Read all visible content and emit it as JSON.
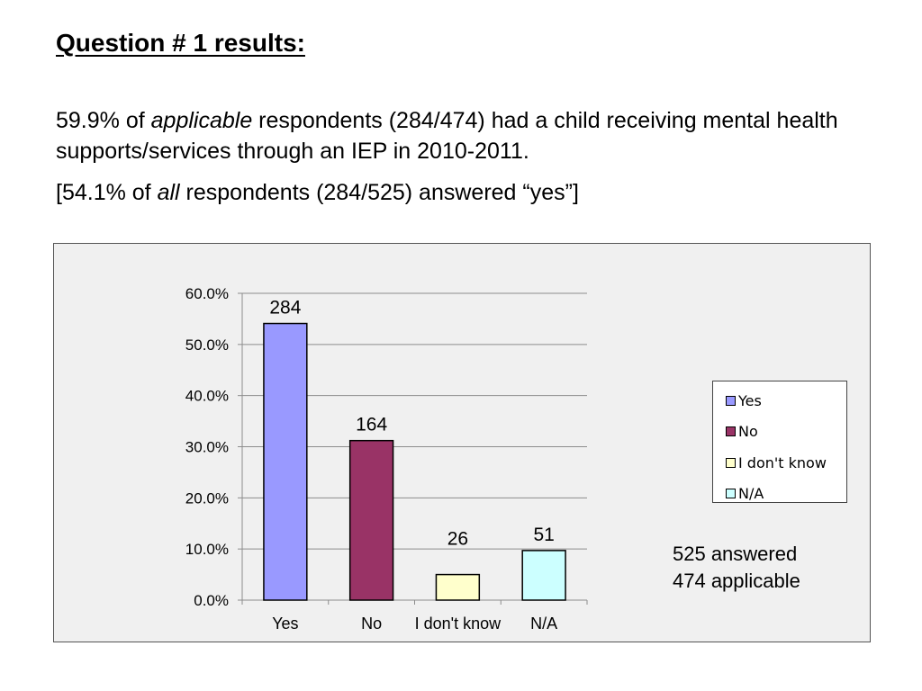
{
  "title": "Question # 1 results:",
  "paragraph1": {
    "pre": "59.9% of ",
    "emph": "applicable",
    "post": " respondents (284/474) had a child receiving mental health supports/services through an IEP in 2010-2011."
  },
  "paragraph2": {
    "pre": "[54.1% of ",
    "emph": "all",
    "post": " respondents (284/525) answered “yes”]"
  },
  "chart_data": {
    "type": "bar",
    "categories": [
      "Yes",
      "No",
      "I don't know",
      "N/A"
    ],
    "values": [
      54.1,
      31.2,
      5.0,
      9.7
    ],
    "data_labels": [
      "284",
      "164",
      "26",
      "51"
    ],
    "colors": [
      "#9999ff",
      "#993366",
      "#ffffcc",
      "#ccffff"
    ],
    "ylim": [
      0,
      60
    ],
    "yticks": [
      "0.0%",
      "10.0%",
      "20.0%",
      "30.0%",
      "40.0%",
      "50.0%",
      "60.0%"
    ],
    "grid": true,
    "legend": {
      "placement": "right",
      "entries": [
        "Yes",
        "No",
        "I don't know",
        "N/A"
      ]
    },
    "notes": [
      "525 answered",
      "474 applicable"
    ]
  }
}
